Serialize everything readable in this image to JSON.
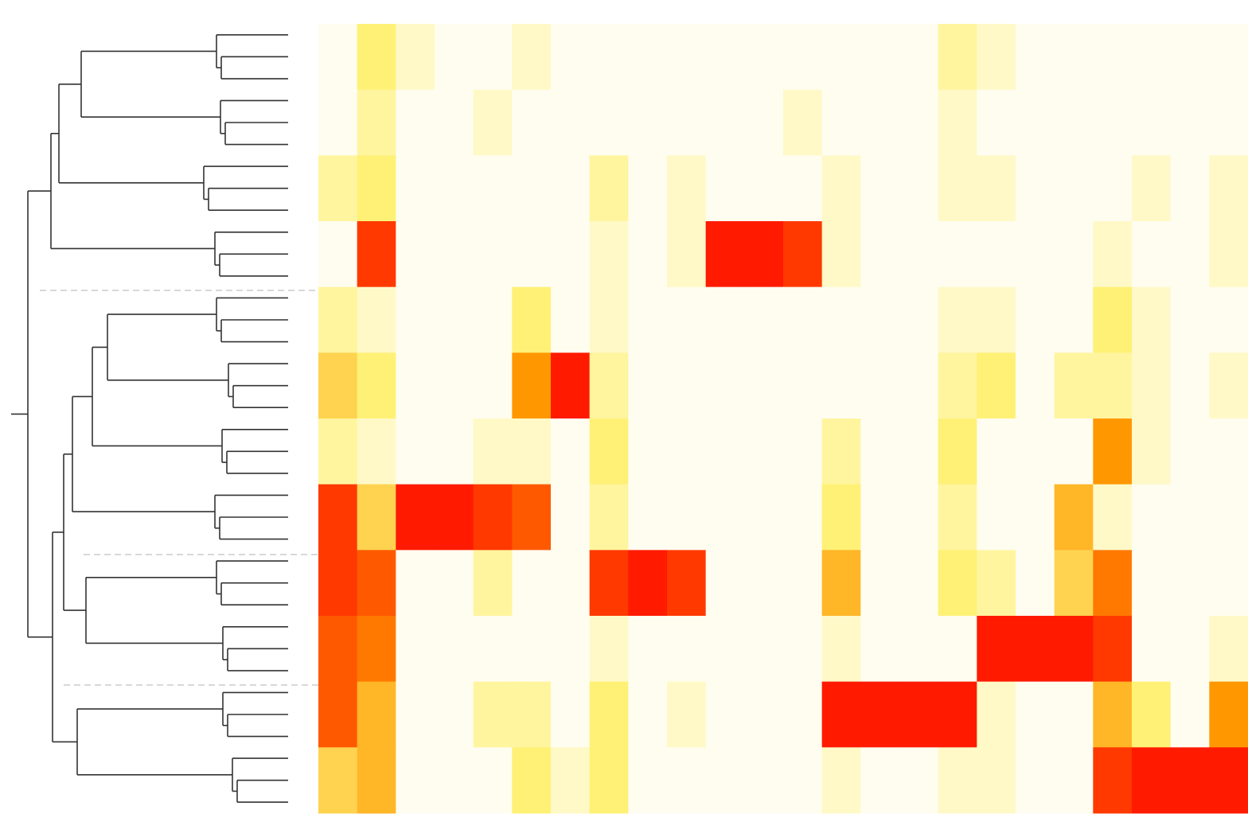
{
  "chart_data": {
    "type": "heatmap",
    "colorscale": [
      [
        0,
        "#fffdf0"
      ],
      [
        0.3,
        "#fff176"
      ],
      [
        0.6,
        "#ff9800"
      ],
      [
        1,
        "#ff1a00"
      ]
    ],
    "values": [
      [
        0,
        0.3,
        0.1,
        0,
        0,
        0.1,
        0,
        0,
        0,
        0,
        0,
        0,
        0,
        0,
        0,
        0,
        0.2,
        0.1,
        0,
        0,
        0,
        0,
        0,
        0
      ],
      [
        0,
        0.2,
        0,
        0,
        0.1,
        0,
        0,
        0,
        0,
        0,
        0,
        0,
        0.1,
        0,
        0,
        0,
        0.1,
        0,
        0,
        0,
        0,
        0,
        0,
        0
      ],
      [
        0.2,
        0.3,
        0,
        0,
        0,
        0,
        0,
        0.2,
        0,
        0.1,
        0,
        0,
        0,
        0.1,
        0,
        0,
        0.1,
        0.1,
        0,
        0,
        0,
        0.1,
        0,
        0.1
      ],
      [
        0,
        0.9,
        0,
        0,
        0,
        0,
        0,
        0.1,
        0,
        0.1,
        1,
        1,
        0.9,
        0.1,
        0,
        0,
        0,
        0,
        0,
        0,
        0.1,
        0,
        0,
        0.1
      ],
      [
        0.2,
        0.1,
        0,
        0,
        0,
        0.3,
        0,
        0.1,
        0,
        0,
        0,
        0,
        0,
        0,
        0,
        0,
        0.1,
        0.1,
        0,
        0,
        0.3,
        0.1,
        0,
        0
      ],
      [
        0.4,
        0.3,
        0,
        0,
        0,
        0.6,
        1,
        0.2,
        0,
        0,
        0,
        0,
        0,
        0,
        0,
        0,
        0.2,
        0.3,
        0,
        0.2,
        0.2,
        0.1,
        0,
        0.1
      ],
      [
        0.2,
        0.1,
        0,
        0,
        0.1,
        0.1,
        0,
        0.3,
        0,
        0,
        0,
        0,
        0,
        0.2,
        0,
        0,
        0.3,
        0,
        0,
        0,
        0.6,
        0.1,
        0,
        0
      ],
      [
        0.9,
        0.4,
        1,
        1,
        0.9,
        0.8,
        0,
        0.2,
        0,
        0,
        0,
        0,
        0,
        0.3,
        0,
        0,
        0.2,
        0,
        0,
        0.5,
        0.1,
        0,
        0,
        0
      ],
      [
        0.9,
        0.8,
        0,
        0,
        0.2,
        0,
        0,
        0.9,
        1,
        0.9,
        0,
        0,
        0,
        0.5,
        0,
        0,
        0.3,
        0.2,
        0,
        0.4,
        0.7,
        0,
        0,
        0
      ],
      [
        0.8,
        0.7,
        0,
        0,
        0,
        0,
        0,
        0.1,
        0,
        0,
        0,
        0,
        0,
        0.1,
        0,
        0,
        0,
        1,
        1,
        1,
        0.9,
        0,
        0,
        0.1
      ],
      [
        0.8,
        0.5,
        0,
        0,
        0.2,
        0.2,
        0,
        0.3,
        0,
        0.1,
        0,
        0,
        0,
        1,
        1,
        1,
        1,
        0.1,
        0,
        0,
        0.5,
        0.3,
        0,
        0.6
      ],
      [
        0.4,
        0.5,
        0,
        0,
        0,
        0.3,
        0.1,
        0.3,
        0,
        0,
        0,
        0,
        0,
        0.1,
        0,
        0,
        0.1,
        0.1,
        0,
        0,
        0.9,
        1,
        1,
        1
      ]
    ]
  }
}
